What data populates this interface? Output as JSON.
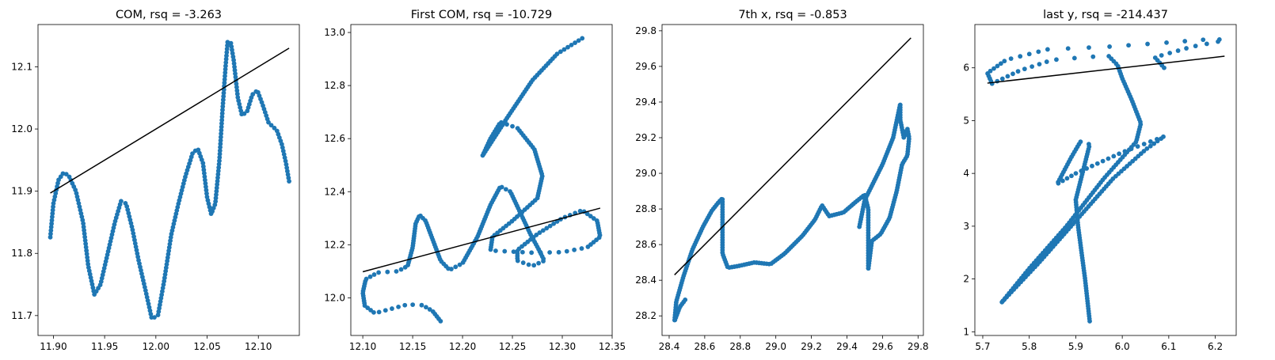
{
  "chart_data": [
    {
      "type": "scatter",
      "title": "COM, rsq = -3.263",
      "xlim": [
        11.885,
        12.14
      ],
      "ylim": [
        11.668,
        12.168
      ],
      "xticks": [
        11.9,
        11.95,
        12.0,
        12.05,
        12.1
      ],
      "xtick_labels": [
        "11.90",
        "11.95",
        "12.00",
        "12.05",
        "12.10"
      ],
      "yticks": [
        11.7,
        11.8,
        11.9,
        12.0,
        12.1
      ],
      "ytick_labels": [
        "11.7",
        "11.8",
        "11.9",
        "12.0",
        "12.1"
      ],
      "point_color": "#1f77b4",
      "line_color": "#000000",
      "fit_line": [
        [
          11.897,
          11.897
        ],
        [
          12.13,
          12.13
        ]
      ],
      "trajectory": [
        [
          11.897,
          11.826
        ],
        [
          11.9,
          11.88
        ],
        [
          11.905,
          11.918
        ],
        [
          11.91,
          11.93
        ],
        [
          11.915,
          11.925
        ],
        [
          11.922,
          11.9
        ],
        [
          11.929,
          11.85
        ],
        [
          11.934,
          11.78
        ],
        [
          11.94,
          11.734
        ],
        [
          11.946,
          11.75
        ],
        [
          11.953,
          11.8
        ],
        [
          11.96,
          11.85
        ],
        [
          11.966,
          11.884
        ],
        [
          11.971,
          11.88
        ],
        [
          11.977,
          11.84
        ],
        [
          11.983,
          11.79
        ],
        [
          11.99,
          11.74
        ],
        [
          11.996,
          11.695
        ],
        [
          12.002,
          11.7
        ],
        [
          12.008,
          11.755
        ],
        [
          12.015,
          11.83
        ],
        [
          12.022,
          11.88
        ],
        [
          12.029,
          11.925
        ],
        [
          12.036,
          11.962
        ],
        [
          12.041,
          11.968
        ],
        [
          12.046,
          11.945
        ],
        [
          12.05,
          11.89
        ],
        [
          12.054,
          11.863
        ],
        [
          12.058,
          11.88
        ],
        [
          12.062,
          11.95
        ],
        [
          12.065,
          12.03
        ],
        [
          12.068,
          12.1
        ],
        [
          12.07,
          12.14
        ],
        [
          12.073,
          12.14
        ],
        [
          12.076,
          12.11
        ],
        [
          12.08,
          12.05
        ],
        [
          12.084,
          12.022
        ],
        [
          12.089,
          12.028
        ],
        [
          12.094,
          12.055
        ],
        [
          12.099,
          12.062
        ],
        [
          12.104,
          12.04
        ],
        [
          12.11,
          12.01
        ],
        [
          12.118,
          11.998
        ],
        [
          12.123,
          11.975
        ],
        [
          12.127,
          11.945
        ],
        [
          12.13,
          11.916
        ]
      ],
      "n_points": 300
    },
    {
      "type": "scatter",
      "title": "First COM, rsq = -10.729",
      "xlim": [
        12.088,
        12.35
      ],
      "ylim": [
        11.858,
        13.03
      ],
      "xticks": [
        12.1,
        12.15,
        12.2,
        12.25,
        12.3,
        12.35
      ],
      "xtick_labels": [
        "12.10",
        "12.15",
        "12.20",
        "12.25",
        "12.30",
        "12.35"
      ],
      "yticks": [
        12.0,
        12.2,
        12.4,
        12.6,
        12.8,
        13.0
      ],
      "ytick_labels": [
        "12.0",
        "12.2",
        "12.4",
        "12.6",
        "12.8",
        "13.0"
      ],
      "point_color": "#1f77b4",
      "line_color": "#000000",
      "fit_line": [
        [
          12.1,
          12.098
        ],
        [
          12.338,
          12.338
        ]
      ],
      "trajectory": [
        [
          12.178,
          11.912
        ],
        [
          12.17,
          11.95
        ],
        [
          12.16,
          11.972
        ],
        [
          12.145,
          11.975
        ],
        [
          12.125,
          11.955
        ],
        [
          12.112,
          11.942
        ],
        [
          12.102,
          11.97
        ],
        [
          12.1,
          12.02
        ],
        [
          12.103,
          12.07
        ],
        [
          12.115,
          12.095
        ],
        [
          12.135,
          12.1
        ],
        [
          12.145,
          12.12
        ],
        [
          12.15,
          12.19
        ],
        [
          12.153,
          12.28
        ],
        [
          12.157,
          12.312
        ],
        [
          12.163,
          12.29
        ],
        [
          12.17,
          12.22
        ],
        [
          12.178,
          12.14
        ],
        [
          12.187,
          12.105
        ],
        [
          12.2,
          12.13
        ],
        [
          12.215,
          12.23
        ],
        [
          12.228,
          12.35
        ],
        [
          12.238,
          12.42
        ],
        [
          12.248,
          12.4
        ],
        [
          12.258,
          12.32
        ],
        [
          12.268,
          12.24
        ],
        [
          12.276,
          12.185
        ],
        [
          12.282,
          12.14
        ],
        [
          12.27,
          12.12
        ],
        [
          12.255,
          12.14
        ],
        [
          12.255,
          12.18
        ],
        [
          12.275,
          12.24
        ],
        [
          12.3,
          12.3
        ],
        [
          12.32,
          12.33
        ],
        [
          12.335,
          12.29
        ],
        [
          12.338,
          12.23
        ],
        [
          12.325,
          12.19
        ],
        [
          12.3,
          12.172
        ],
        [
          12.27,
          12.17
        ],
        [
          12.245,
          12.175
        ],
        [
          12.228,
          12.178
        ],
        [
          12.23,
          12.23
        ],
        [
          12.25,
          12.29
        ],
        [
          12.275,
          12.375
        ],
        [
          12.28,
          12.46
        ],
        [
          12.272,
          12.56
        ],
        [
          12.255,
          12.64
        ],
        [
          12.238,
          12.662
        ],
        [
          12.228,
          12.6
        ],
        [
          12.22,
          12.535
        ],
        [
          12.245,
          12.68
        ],
        [
          12.27,
          12.82
        ],
        [
          12.295,
          12.92
        ],
        [
          12.32,
          12.978
        ]
      ],
      "n_points": 320
    },
    {
      "type": "scatter",
      "title": "7th x, rsq = -0.853",
      "xlim": [
        28.36,
        29.83
      ],
      "ylim": [
        28.09,
        29.835
      ],
      "xticks": [
        28.4,
        28.6,
        28.8,
        29.0,
        29.2,
        29.4,
        29.6,
        29.8
      ],
      "xtick_labels": [
        "28.4",
        "28.6",
        "28.8",
        "29.0",
        "29.2",
        "29.4",
        "29.6",
        "29.8"
      ],
      "yticks": [
        28.2,
        28.4,
        28.6,
        28.8,
        29.0,
        29.2,
        29.4,
        29.6,
        29.8
      ],
      "ytick_labels": [
        "28.2",
        "28.4",
        "28.6",
        "28.8",
        "29.0",
        "29.2",
        "29.4",
        "29.6",
        "29.8"
      ],
      "point_color": "#1f77b4",
      "line_color": "#000000",
      "fit_line": [
        [
          28.43,
          28.43
        ],
        [
          29.76,
          29.76
        ]
      ],
      "trajectory": [
        [
          28.49,
          28.29
        ],
        [
          28.46,
          28.25
        ],
        [
          28.43,
          28.17
        ],
        [
          28.44,
          28.28
        ],
        [
          28.48,
          28.42
        ],
        [
          28.53,
          28.57
        ],
        [
          28.59,
          28.7
        ],
        [
          28.64,
          28.79
        ],
        [
          28.68,
          28.84
        ],
        [
          28.7,
          28.86
        ],
        [
          28.7,
          28.75
        ],
        [
          28.7,
          28.55
        ],
        [
          28.73,
          28.47
        ],
        [
          28.79,
          28.48
        ],
        [
          28.88,
          28.5
        ],
        [
          28.97,
          28.49
        ],
        [
          29.05,
          28.55
        ],
        [
          29.15,
          28.65
        ],
        [
          29.22,
          28.74
        ],
        [
          29.26,
          28.82
        ],
        [
          29.3,
          28.76
        ],
        [
          29.38,
          28.78
        ],
        [
          29.45,
          28.84
        ],
        [
          29.5,
          28.88
        ],
        [
          29.52,
          28.8
        ],
        [
          29.52,
          28.6
        ],
        [
          29.52,
          28.46
        ],
        [
          29.54,
          28.62
        ],
        [
          29.59,
          28.66
        ],
        [
          29.64,
          28.75
        ],
        [
          29.68,
          28.9
        ],
        [
          29.71,
          29.05
        ],
        [
          29.74,
          29.1
        ],
        [
          29.75,
          29.2
        ],
        [
          29.74,
          29.25
        ],
        [
          29.72,
          29.2
        ],
        [
          29.7,
          29.3
        ],
        [
          29.7,
          29.39
        ],
        [
          29.66,
          29.2
        ],
        [
          29.6,
          29.05
        ],
        [
          29.55,
          28.95
        ],
        [
          29.5,
          28.85
        ],
        [
          29.47,
          28.7
        ]
      ],
      "n_points": 320
    },
    {
      "type": "scatter",
      "title": "last y, rsq = -214.437",
      "xlim": [
        5.683,
        6.245
      ],
      "ylim": [
        0.93,
        6.82
      ],
      "xticks": [
        5.7,
        5.8,
        5.9,
        6.0,
        6.1,
        6.2
      ],
      "xtick_labels": [
        "5.7",
        "5.8",
        "5.9",
        "6.0",
        "6.1",
        "6.2"
      ],
      "yticks": [
        1,
        2,
        3,
        4,
        5,
        6
      ],
      "ytick_labels": [
        "1",
        "2",
        "3",
        "4",
        "5",
        "6"
      ],
      "point_color": "#1f77b4",
      "line_color": "#000000",
      "fit_line": [
        [
          5.71,
          5.71
        ],
        [
          6.22,
          6.22
        ]
      ],
      "trajectory": [
        [
          5.93,
          1.2
        ],
        [
          5.92,
          2.0
        ],
        [
          5.905,
          3.0
        ],
        [
          5.9,
          3.5
        ],
        [
          5.92,
          4.2
        ],
        [
          5.93,
          4.55
        ],
        [
          5.91,
          4.6
        ],
        [
          5.89,
          4.3
        ],
        [
          5.86,
          3.8
        ],
        [
          5.9,
          4.0
        ],
        [
          6.0,
          4.4
        ],
        [
          6.09,
          4.7
        ],
        [
          6.05,
          4.45
        ],
        [
          5.98,
          3.9
        ],
        [
          5.9,
          3.1
        ],
        [
          5.82,
          2.3
        ],
        [
          5.74,
          1.55
        ],
        [
          5.8,
          2.2
        ],
        [
          5.88,
          3.0
        ],
        [
          5.96,
          3.9
        ],
        [
          6.03,
          4.6
        ],
        [
          6.04,
          4.95
        ],
        [
          6.02,
          5.4
        ],
        [
          6.0,
          5.8
        ],
        [
          5.99,
          6.05
        ],
        [
          5.97,
          6.23
        ],
        [
          5.92,
          6.2
        ],
        [
          5.85,
          6.15
        ],
        [
          5.78,
          5.95
        ],
        [
          5.72,
          5.7
        ],
        [
          5.71,
          5.9
        ],
        [
          5.75,
          6.15
        ],
        [
          5.84,
          6.35
        ],
        [
          5.97,
          6.4
        ],
        [
          6.1,
          6.48
        ],
        [
          6.2,
          6.55
        ],
        [
          6.22,
          6.52
        ],
        [
          6.15,
          6.4
        ],
        [
          6.07,
          6.2
        ],
        [
          6.09,
          6.0
        ]
      ],
      "n_points": 320
    }
  ]
}
